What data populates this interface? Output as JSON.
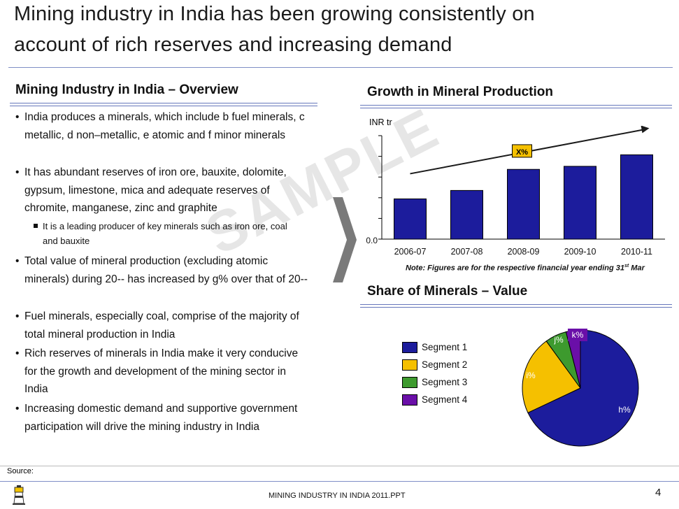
{
  "title": {
    "line1": "Mining industry in India has been growing consistently on",
    "line2": "account of rich reserves and increasing demand"
  },
  "overview": {
    "heading": "Mining Industry in India – Overview",
    "bullets": [
      "India produces a minerals, which include b fuel minerals, c metallic, d non–metallic, e atomic and f minor minerals",
      "It has abundant reserves of iron ore, bauxite, dolomite, gypsum, limestone, mica and adequate reserves of chromite, manganese, zinc and graphite",
      "Total value of mineral production (excluding atomic minerals) during 20-- has increased by g% over that of 20--",
      "Fuel minerals, especially coal, comprise of the majority of total mineral production in India",
      "Rich reserves of minerals in India make it very conducive for the growth and development of the mining sector in India",
      "Increasing domestic demand and supportive government participation will drive the mining industry in India"
    ],
    "sub_bullet": "It is a leading producer of key minerals such as iron ore, coal and bauxite",
    "bullet_char": "•"
  },
  "watermark": "SAMPLE",
  "growth": {
    "heading": "Growth in Mineral Production",
    "unit": "INR tr",
    "note": "Note: Figures are for the respective financial year ending 31",
    "note_sup": "st",
    "note_end": " Mar",
    "cagr_label": "X%"
  },
  "share": {
    "heading": "Share of Minerals – Value"
  },
  "chart_data": [
    {
      "type": "bar",
      "title": "Growth in Mineral Production",
      "ylabel": "INR tr",
      "categories": [
        "2006-07",
        "2007-08",
        "2008-09",
        "2009-10",
        "2010-11"
      ],
      "values": [
        1.05,
        1.27,
        1.82,
        1.9,
        2.2
      ],
      "ylim": [
        0,
        2.7
      ],
      "y_tick_label": "0.0",
      "annotation": "X%",
      "color": "#1c1c9c"
    },
    {
      "type": "pie",
      "title": "Share of Minerals – Value",
      "slices": [
        {
          "name": "Segment 1",
          "label": "h%",
          "value": 68,
          "color": "#1c1c9c"
        },
        {
          "name": "Segment 2",
          "label": "i%",
          "value": 22,
          "color": "#f5c000"
        },
        {
          "name": "Segment 3",
          "label": "j%",
          "value": 6,
          "color": "#3d9a2e"
        },
        {
          "name": "Segment 4",
          "label": "k%",
          "value": 4,
          "color": "#6a0fa8"
        }
      ],
      "legend": [
        "Segment 1",
        "Segment 2",
        "Segment 3",
        "Segment 4"
      ]
    }
  ],
  "footer": {
    "source": "Source:",
    "filename": "MINING INDUSTRY IN INDIA 2011.PPT",
    "page": "4"
  },
  "colors": {
    "bar": "#1c1c9c",
    "rule": "#6677bb",
    "chevron": "#7a7a7a",
    "arrow": "#1a1a1a"
  }
}
